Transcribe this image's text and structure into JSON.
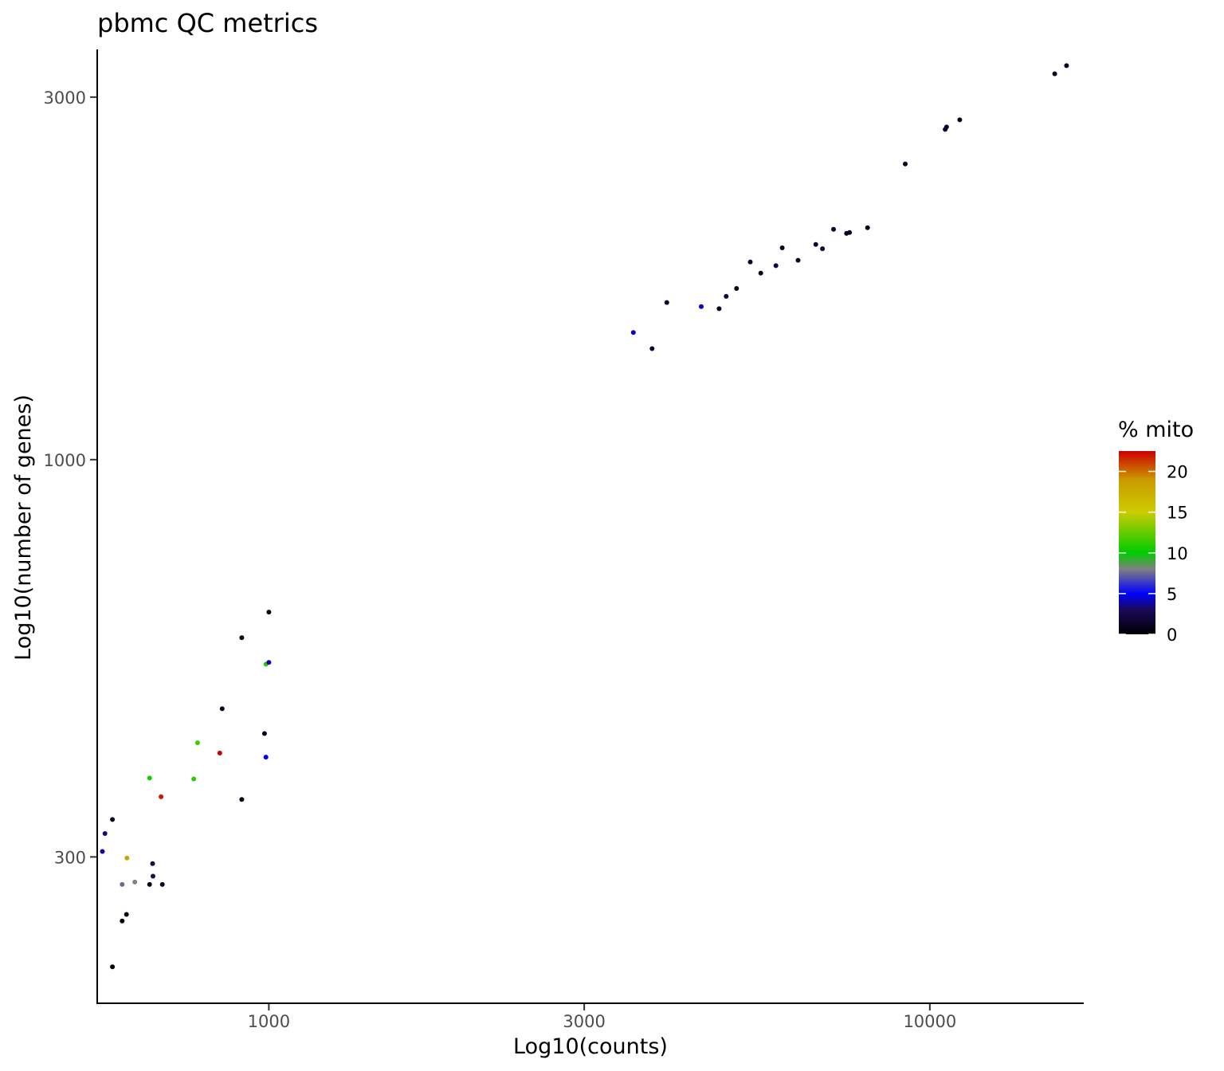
{
  "chart_data": {
    "type": "scatter",
    "title": "pbmc QC metrics",
    "xlabel": "Log10(counts)",
    "ylabel": "Log10(number of genes)",
    "x_scale": "log10",
    "y_scale": "log10",
    "xlim": [
      550,
      17000
    ],
    "ylim": [
      193,
      3450
    ],
    "x_ticks": [
      {
        "value": 1000,
        "label": "1000"
      },
      {
        "value": 3000,
        "label": "3000"
      },
      {
        "value": 10000,
        "label": "10000"
      }
    ],
    "y_ticks": [
      {
        "value": 300,
        "label": "300"
      },
      {
        "value": 1000,
        "label": "1000"
      },
      {
        "value": 3000,
        "label": "3000"
      }
    ],
    "grid": false,
    "legend": {
      "title": "% mito",
      "placement": "right",
      "range": [
        0,
        22.5
      ],
      "colors": [
        "#000000",
        "#1a0a57",
        "#0000ff",
        "#808080",
        "#00cc00",
        "#cccc00",
        "#cc9900",
        "#cc0000"
      ],
      "color_stops": [
        0,
        3,
        5,
        8,
        10,
        15,
        19,
        22.5
      ],
      "breaks": [
        {
          "value": 0,
          "label": "0"
        },
        {
          "value": 5,
          "label": "5"
        },
        {
          "value": 10,
          "label": "10"
        },
        {
          "value": 15,
          "label": "15"
        },
        {
          "value": 20,
          "label": "20"
        }
      ]
    },
    "series": [
      {
        "columns": [
          "counts",
          "genes",
          "pct_mito"
        ],
        "points": [
          [
            16100,
            3300,
            1.2
          ],
          [
            15450,
            3220,
            1.5
          ],
          [
            11100,
            2800,
            1.0
          ],
          [
            10600,
            2740,
            1.3
          ],
          [
            10550,
            2720,
            1.6
          ],
          [
            9180,
            2450,
            1.1
          ],
          [
            8050,
            2020,
            1.2
          ],
          [
            7560,
            1990,
            1.4
          ],
          [
            7480,
            1985,
            1.1
          ],
          [
            7150,
            2010,
            1.6
          ],
          [
            6880,
            1895,
            1.2
          ],
          [
            6720,
            1920,
            1.8
          ],
          [
            6320,
            1830,
            1.3
          ],
          [
            5980,
            1900,
            1.1
          ],
          [
            5850,
            1800,
            1.9
          ],
          [
            5550,
            1760,
            1.2
          ],
          [
            5350,
            1820,
            1.4
          ],
          [
            5100,
            1680,
            1.0
          ],
          [
            4920,
            1640,
            2.1
          ],
          [
            4800,
            1580,
            1.3
          ],
          [
            4510,
            1590,
            4.5
          ],
          [
            4000,
            1610,
            2.0
          ],
          [
            3560,
            1470,
            4.3
          ],
          [
            3800,
            1400,
            1.5
          ],
          [
            990,
            538,
            11.0
          ],
          [
            780,
            424,
            11.5
          ],
          [
            770,
            380,
            11.0
          ],
          [
            660,
            381,
            10.5
          ],
          [
            687,
            360,
            22.0
          ],
          [
            843,
            411,
            22.5
          ],
          [
            610,
            299,
            18.0
          ],
          [
            627,
            278,
            8.0
          ],
          [
            600,
            276,
            7.5
          ],
          [
            1000,
            541,
            4.0
          ],
          [
            600,
            247,
            0.5
          ],
          [
            609,
            252,
            0.8
          ],
          [
            580,
            215,
            0.5
          ],
          [
            910,
            583,
            1.0
          ],
          [
            850,
            470,
            1.0
          ],
          [
            1000,
            630,
            1.0
          ],
          [
            985,
            436,
            1.0
          ],
          [
            910,
            357,
            1.0
          ],
          [
            990,
            406,
            5.0
          ],
          [
            580,
            336,
            1.0
          ],
          [
            565,
            322,
            3.5
          ],
          [
            560,
            305,
            4.0
          ],
          [
            660,
            276,
            1.0
          ],
          [
            668,
            283,
            3.0
          ],
          [
            690,
            276,
            1.5
          ],
          [
            667,
            294,
            2.5
          ]
        ]
      }
    ]
  }
}
